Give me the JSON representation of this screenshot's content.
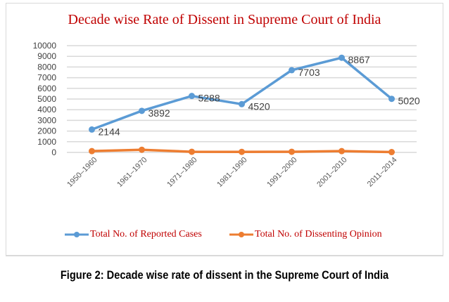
{
  "chart_data": {
    "type": "line",
    "title": "Decade wise Rate of Dissent in Supreme Court of India",
    "categories": [
      "1950–1960",
      "1961–1970",
      "1971–1980",
      "1981–1990",
      "1991–2000",
      "2001–2010",
      "2011–2014"
    ],
    "series": [
      {
        "name": "Total No.  of Reported Cases",
        "values": [
          2144,
          3892,
          5288,
          4520,
          7703,
          8867,
          5020
        ],
        "color": "#5b9bd5",
        "data_labels": true
      },
      {
        "name": "Total No. of Dissenting Opinion",
        "values": [
          120,
          250,
          60,
          50,
          60,
          120,
          30
        ],
        "color": "#ed7d31",
        "data_labels": false
      }
    ],
    "ylim": [
      0,
      10000
    ],
    "yticks": [
      0,
      1000,
      2000,
      3000,
      4000,
      5000,
      6000,
      7000,
      8000,
      9000,
      10000
    ],
    "grid": true,
    "legend": "bottom"
  },
  "caption": "Figure 2: Decade wise rate of dissent in the Supreme Court of India"
}
